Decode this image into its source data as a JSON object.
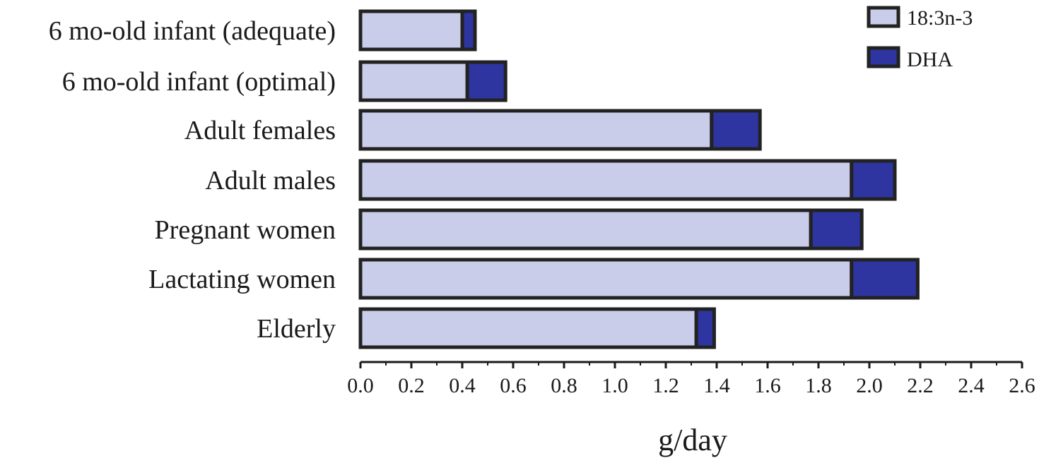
{
  "chart_data": {
    "type": "bar",
    "orientation": "horizontal",
    "stacked": true,
    "categories": [
      "6 mo-old infant (adequate)",
      "6 mo-old infant (optimal)",
      "Adult females",
      "Adult males",
      "Pregnant women",
      "Lactating women",
      "Elderly"
    ],
    "series": [
      {
        "name": "18:3n-3",
        "values": [
          0.4,
          0.42,
          1.38,
          1.93,
          1.77,
          1.93,
          1.32
        ],
        "color": "#cacdea"
      },
      {
        "name": "DHA",
        "values": [
          0.05,
          0.15,
          0.19,
          0.17,
          0.2,
          0.26,
          0.07
        ],
        "color": "#2e35a0"
      }
    ],
    "xlabel": "g/day",
    "xlim": [
      0,
      2.6
    ],
    "xticks": [
      "0.0",
      "0.2",
      "0.4",
      "0.6",
      "0.8",
      "1.0",
      "1.2",
      "1.4",
      "1.6",
      "1.8",
      "2.0",
      "2.2",
      "2.4",
      "2.6"
    ],
    "grid": false,
    "legend_position": "top-right",
    "outline_color": "#222222"
  }
}
